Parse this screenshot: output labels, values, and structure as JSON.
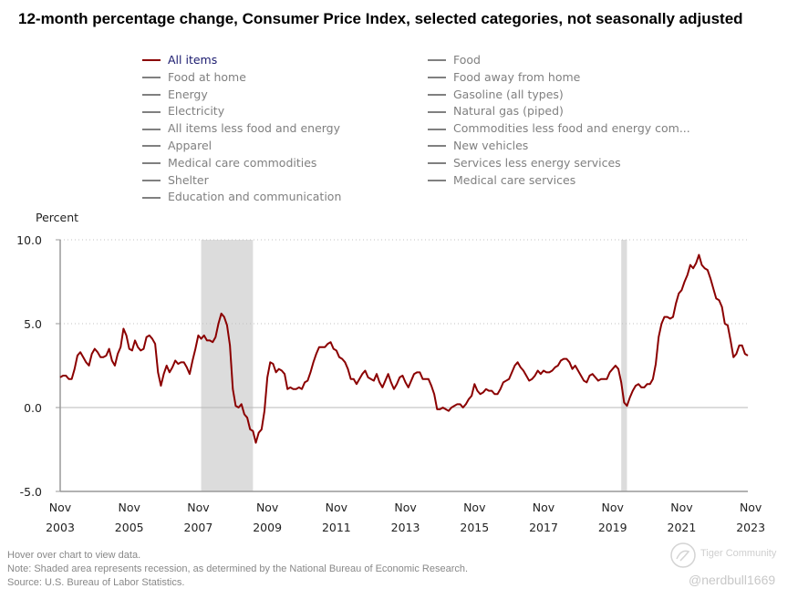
{
  "title": "12-month percentage change, Consumer Price Index, selected categories, not seasonally adjusted",
  "legend": {
    "left": [
      "All items",
      "Food at home",
      "Energy",
      "Electricity",
      "All items less food and energy",
      "Apparel",
      "Medical care commodities",
      "Shelter",
      "Education and communication"
    ],
    "right": [
      "Food",
      "Food away from home",
      "Gasoline (all types)",
      "Natural gas (piped)",
      "Commodities less food and energy com...",
      "New vehicles",
      "Services less energy services",
      "Medical care services"
    ],
    "active": "All items",
    "active_color": "#8b0000",
    "inactive_color": "#808080"
  },
  "footnotes": {
    "hover": "Hover over chart to view data.",
    "note": "Note: Shaded area represents recession, as determined by the National Bureau of Economic Research.",
    "source": "Source: U.S. Bureau of Labor Statistics."
  },
  "watermark": {
    "brand": "Tiger Community",
    "handle": "@nerdbull1669"
  },
  "chart_data": {
    "type": "line",
    "title": "12-month percentage change, Consumer Price Index, selected categories, not seasonally adjusted",
    "ylabel": "Percent",
    "xlabel": "",
    "ylim": [
      -5.0,
      10.0
    ],
    "yticks": [
      "10.0",
      "5.0",
      "0.0",
      "-5.0"
    ],
    "ytick_values": [
      10,
      5,
      0,
      -5
    ],
    "xticks": [
      {
        "month": "Nov",
        "year": "2003",
        "index": 0
      },
      {
        "month": "Nov",
        "year": "2005",
        "index": 24
      },
      {
        "month": "Nov",
        "year": "2007",
        "index": 48
      },
      {
        "month": "Nov",
        "year": "2009",
        "index": 72
      },
      {
        "month": "Nov",
        "year": "2011",
        "index": 96
      },
      {
        "month": "Nov",
        "year": "2013",
        "index": 120
      },
      {
        "month": "Nov",
        "year": "2015",
        "index": 144
      },
      {
        "month": "Nov",
        "year": "2017",
        "index": 168
      },
      {
        "month": "Nov",
        "year": "2019",
        "index": 192
      },
      {
        "month": "Nov",
        "year": "2021",
        "index": 216
      },
      {
        "month": "Nov",
        "year": "2023",
        "index": 240
      }
    ],
    "x_start": "Nov 2003",
    "x_end": "Nov 2023",
    "x_frequency": "monthly",
    "grid": "dotted horizontal at 5.0 and 10.0; solid zero line",
    "recessions": [
      {
        "label": "Dec 2007 - Jun 2009",
        "start_index": 49,
        "end_index": 67
      },
      {
        "label": "Feb 2020 - Apr 2020",
        "start_index": 195,
        "end_index": 197
      }
    ],
    "series": [
      {
        "name": "All items",
        "color": "#8b0000",
        "values": [
          1.8,
          1.9,
          1.9,
          1.7,
          1.7,
          2.3,
          3.1,
          3.3,
          3.0,
          2.7,
          2.5,
          3.2,
          3.5,
          3.3,
          3.0,
          3.0,
          3.1,
          3.5,
          2.8,
          2.5,
          3.2,
          3.6,
          4.7,
          4.3,
          3.5,
          3.4,
          4.0,
          3.6,
          3.4,
          3.5,
          4.2,
          4.3,
          4.1,
          3.8,
          2.1,
          1.3,
          2.0,
          2.5,
          2.1,
          2.4,
          2.8,
          2.6,
          2.7,
          2.7,
          2.4,
          2.0,
          2.8,
          3.5,
          4.3,
          4.1,
          4.3,
          4.0,
          4.0,
          3.9,
          4.2,
          5.0,
          5.6,
          5.4,
          4.9,
          3.7,
          1.1,
          0.1,
          0.0,
          0.2,
          -0.4,
          -0.6,
          -1.3,
          -1.4,
          -2.1,
          -1.5,
          -1.3,
          -0.2,
          1.8,
          2.7,
          2.6,
          2.1,
          2.3,
          2.2,
          2.0,
          1.1,
          1.2,
          1.1,
          1.1,
          1.2,
          1.1,
          1.5,
          1.6,
          2.1,
          2.7,
          3.2,
          3.6,
          3.6,
          3.6,
          3.8,
          3.9,
          3.5,
          3.4,
          3.0,
          2.9,
          2.7,
          2.3,
          1.7,
          1.7,
          1.4,
          1.7,
          2.0,
          2.2,
          1.8,
          1.7,
          1.6,
          2.0,
          1.5,
          1.2,
          1.6,
          2.0,
          1.5,
          1.1,
          1.4,
          1.8,
          1.9,
          1.5,
          1.2,
          1.6,
          2.0,
          2.1,
          2.1,
          1.7,
          1.7,
          1.7,
          1.3,
          0.8,
          -0.1,
          -0.1,
          0.0,
          -0.1,
          -0.2,
          0.0,
          0.1,
          0.2,
          0.2,
          0.0,
          0.2,
          0.5,
          0.7,
          1.4,
          1.0,
          0.8,
          0.9,
          1.1,
          1.0,
          1.0,
          0.8,
          0.8,
          1.1,
          1.5,
          1.6,
          1.7,
          2.1,
          2.5,
          2.7,
          2.4,
          2.2,
          1.9,
          1.6,
          1.7,
          1.9,
          2.2,
          2.0,
          2.2,
          2.1,
          2.1,
          2.2,
          2.4,
          2.5,
          2.8,
          2.9,
          2.9,
          2.7,
          2.3,
          2.5,
          2.2,
          1.9,
          1.6,
          1.5,
          1.9,
          2.0,
          1.8,
          1.6,
          1.7,
          1.7,
          1.7,
          2.1,
          2.3,
          2.5,
          2.3,
          1.5,
          0.3,
          0.1,
          0.6,
          1.0,
          1.3,
          1.4,
          1.2,
          1.2,
          1.4,
          1.4,
          1.7,
          2.6,
          4.2,
          5.0,
          5.4,
          5.4,
          5.3,
          5.4,
          6.2,
          6.8,
          7.0,
          7.5,
          7.9,
          8.5,
          8.3,
          8.6,
          9.1,
          8.5,
          8.3,
          8.2,
          7.7,
          7.1,
          6.5,
          6.4,
          6.0,
          5.0,
          4.9,
          4.0,
          3.0,
          3.2,
          3.7,
          3.7,
          3.2,
          3.1
        ]
      }
    ]
  }
}
